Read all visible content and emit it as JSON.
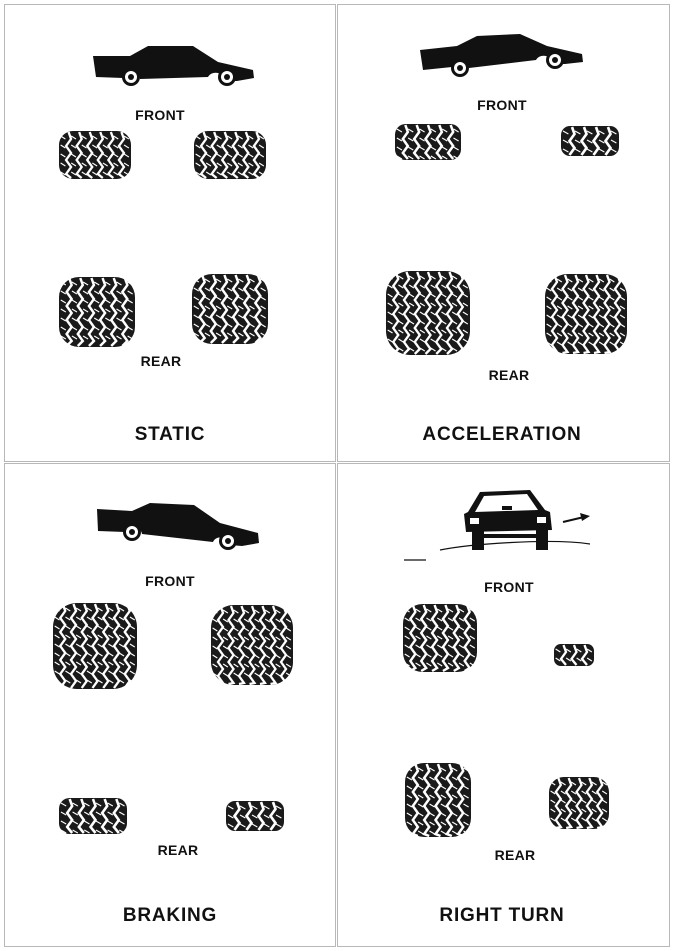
{
  "panels": [
    {
      "title": "STATIC",
      "front_label": "FRONT",
      "rear_label": "REAR",
      "vehicle": "car-side-silhouette-icon"
    },
    {
      "title": "ACCELERATION",
      "front_label": "FRONT",
      "rear_label": "REAR",
      "vehicle": "car-side-silhouette-icon"
    },
    {
      "title": "BRAKING",
      "front_label": "FRONT",
      "rear_label": "REAR",
      "vehicle": "car-side-silhouette-icon"
    },
    {
      "title": "RIGHT TURN",
      "front_label": "FRONT",
      "rear_label": "REAR",
      "vehicle": "car-rear-view-turning-icon"
    }
  ],
  "colors": {
    "ink": "#111111",
    "border": "#b8b8b8",
    "background": "#ffffff"
  }
}
